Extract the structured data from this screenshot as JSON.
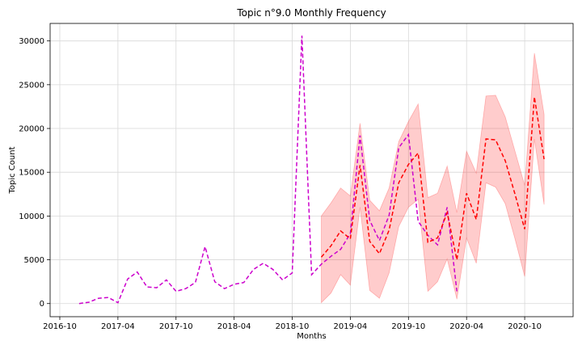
{
  "chart_data": {
    "type": "line",
    "title": "Topic n°9.0 Monthly Frequency",
    "xlabel": "Months",
    "ylabel": "Topic Count",
    "grid": true,
    "xlim": [
      "2016-09-01",
      "2021-03-01"
    ],
    "ylim": [
      -1500,
      32000
    ],
    "x_ticks": [
      "2016-10",
      "2017-04",
      "2017-10",
      "2018-04",
      "2018-10",
      "2019-04",
      "2019-10",
      "2020-04",
      "2020-10"
    ],
    "y_ticks": [
      0,
      5000,
      10000,
      15000,
      20000,
      25000,
      30000
    ],
    "series": [
      {
        "style": "dashed",
        "color": "#cc00cc",
        "x": [
          "2016-12",
          "2017-01",
          "2017-02",
          "2017-03",
          "2017-04",
          "2017-05",
          "2017-06",
          "2017-07",
          "2017-08",
          "2017-09",
          "2017-10",
          "2017-11",
          "2017-12",
          "2018-01",
          "2018-02",
          "2018-03",
          "2018-04",
          "2018-05",
          "2018-06",
          "2018-07",
          "2018-08",
          "2018-09",
          "2018-10",
          "2018-11",
          "2018-12",
          "2019-01",
          "2019-02",
          "2019-03",
          "2019-04",
          "2019-05",
          "2019-06",
          "2019-07",
          "2019-08",
          "2019-09",
          "2019-10",
          "2019-11",
          "2019-12",
          "2020-01",
          "2020-02",
          "2020-03"
        ],
        "values": [
          0,
          150,
          600,
          700,
          100,
          2800,
          3600,
          1900,
          1800,
          2700,
          1400,
          1700,
          2400,
          6500,
          2500,
          1700,
          2200,
          2400,
          3900,
          4600,
          3900,
          2700,
          3500,
          30600,
          3300,
          4500,
          5400,
          6200,
          8000,
          19200,
          9500,
          7200,
          10100,
          17800,
          19300,
          9400,
          7800,
          6700,
          11000,
          1400
        ]
      },
      {
        "style": "dashed",
        "color": "#ff0000",
        "x": [
          "2019-01",
          "2019-02",
          "2019-03",
          "2019-04",
          "2019-05",
          "2019-06",
          "2019-07",
          "2019-08",
          "2019-09",
          "2019-10",
          "2019-11",
          "2019-12",
          "2020-01",
          "2020-02",
          "2020-03",
          "2020-04",
          "2020-05",
          "2020-06",
          "2020-07",
          "2020-08",
          "2020-09",
          "2020-10",
          "2020-11",
          "2020-12"
        ],
        "values": [
          5300,
          6600,
          8300,
          7400,
          15800,
          7100,
          5700,
          8400,
          13800,
          15900,
          17200,
          7000,
          7500,
          10400,
          5000,
          12600,
          9600,
          18800,
          18700,
          16300,
          12500,
          8500,
          23600,
          16500
        ],
        "upper": [
          10000,
          11500,
          13200,
          12300,
          20600,
          11800,
          10600,
          13200,
          18500,
          20800,
          22800,
          12100,
          12600,
          15700,
          10400,
          17400,
          14900,
          23700,
          23800,
          21300,
          17400,
          13500,
          28600,
          21600
        ],
        "lower": [
          100,
          1200,
          3300,
          2100,
          11000,
          1500,
          600,
          3500,
          8800,
          11000,
          11900,
          1400,
          2500,
          5100,
          500,
          7500,
          4600,
          13800,
          13300,
          11400,
          7400,
          3100,
          18800,
          11300
        ]
      }
    ]
  }
}
